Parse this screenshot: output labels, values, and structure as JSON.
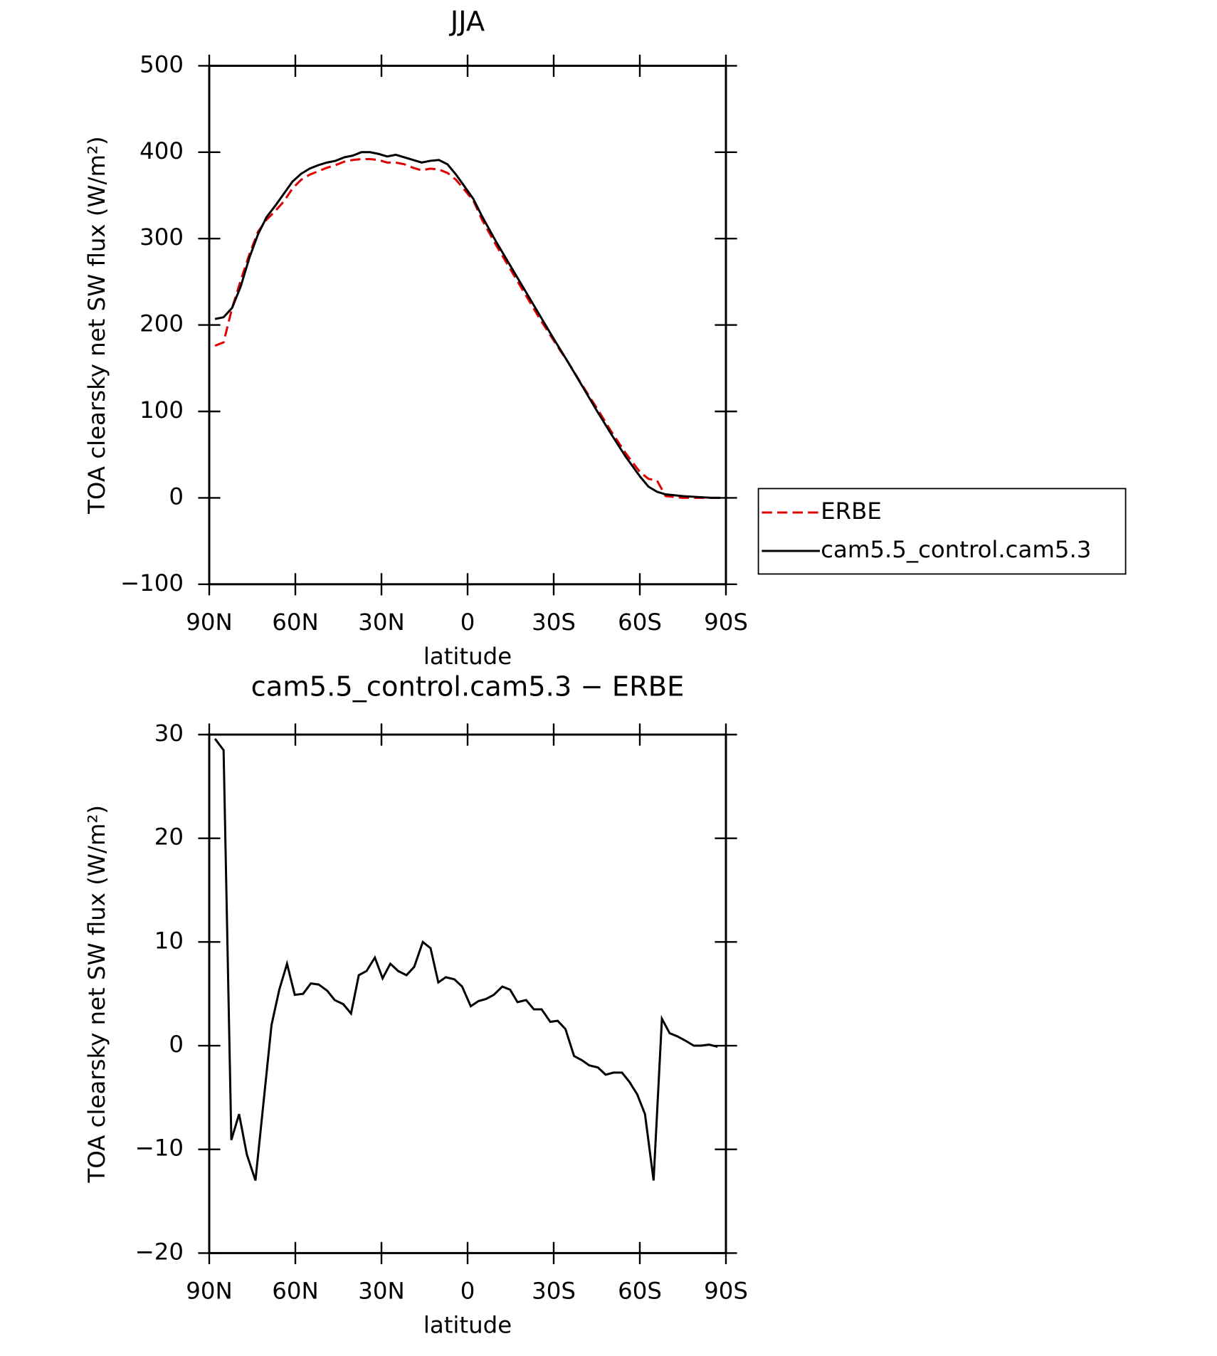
{
  "chart_data": [
    {
      "type": "line",
      "title": "JJA",
      "xlabel": "latitude",
      "ylabel": "TOA clearsky net SW flux (W/m²)",
      "xlim": [
        90,
        -90
      ],
      "xticks": [
        {
          "value": 90,
          "label": "90N"
        },
        {
          "value": 60,
          "label": "60N"
        },
        {
          "value": 30,
          "label": "30N"
        },
        0,
        {
          "value": -30,
          "label": "30S"
        },
        {
          "value": -60,
          "label": "60S"
        },
        {
          "value": -90,
          "label": "90S"
        }
      ],
      "ylim": [
        -100,
        500
      ],
      "yticks": [
        {
          "value": -100,
          "label": "−100"
        },
        0,
        100,
        200,
        300,
        400,
        500
      ],
      "legend": "right",
      "x": [
        88,
        85,
        82,
        79,
        76,
        73,
        70,
        67,
        64,
        61,
        58,
        55,
        52,
        49,
        46,
        43,
        40,
        37,
        34,
        31,
        28,
        25,
        22,
        19,
        16,
        13,
        10,
        7,
        4,
        1,
        -2,
        -5,
        -10,
        -15,
        -20,
        -25,
        -30,
        -35,
        -40,
        -45,
        -50,
        -55,
        -60,
        -63,
        -66,
        -69,
        -72,
        -75,
        -80,
        -85,
        -88
      ],
      "series": [
        {
          "name": "ERBE",
          "color": "#e00000",
          "style": "dashed",
          "values": [
            176,
            180,
            220,
            252,
            282,
            308,
            322,
            332,
            343,
            358,
            368,
            374,
            378,
            382,
            385,
            389,
            391,
            392,
            392,
            391,
            388,
            388,
            386,
            382,
            379,
            381,
            380,
            376,
            368,
            356,
            344,
            322,
            292,
            264,
            236,
            208,
            182,
            157,
            130,
            104,
            77,
            52,
            30,
            22,
            20,
            2,
            1,
            0,
            0,
            0,
            0
          ]
        },
        {
          "name": "cam5.5_control.cam5.3",
          "color": "#000000",
          "style": "solid",
          "values": [
            207,
            209,
            220,
            245,
            278,
            305,
            325,
            338,
            352,
            366,
            375,
            381,
            385,
            388,
            390,
            394,
            396,
            400,
            400,
            398,
            395,
            397,
            394,
            391,
            388,
            390,
            391,
            386,
            374,
            360,
            346,
            326,
            296,
            268,
            240,
            212,
            184,
            157,
            129,
            101,
            74,
            48,
            25,
            13,
            7,
            4,
            3,
            2,
            1,
            0,
            0
          ]
        }
      ]
    },
    {
      "type": "line",
      "title": "cam5.5_control.cam5.3 − ERBE",
      "xlabel": "latitude",
      "ylabel": "TOA clearsky net SW flux (W/m²)",
      "xlim": [
        90,
        -90
      ],
      "xticks": [
        {
          "value": 90,
          "label": "90N"
        },
        {
          "value": 60,
          "label": "60N"
        },
        {
          "value": 30,
          "label": "30N"
        },
        0,
        {
          "value": -30,
          "label": "30S"
        },
        {
          "value": -60,
          "label": "60S"
        },
        {
          "value": -90,
          "label": "90S"
        }
      ],
      "ylim": [
        -20,
        30
      ],
      "yticks": [
        {
          "value": -20,
          "label": "−20"
        },
        {
          "value": -10,
          "label": "−10"
        },
        0,
        10,
        20,
        30
      ],
      "x": [
        88,
        85,
        82.3,
        79.6,
        76.9,
        73.9,
        68.3,
        65.6,
        62.9,
        60.2,
        57.3,
        54.6,
        51.9,
        48.9,
        46.3,
        43.3,
        40.6,
        37.9,
        35.2,
        32.3,
        29.6,
        26.9,
        24.2,
        21.3,
        18.6,
        15.6,
        12.9,
        10.2,
        7.6,
        4.6,
        1.9,
        -1.1,
        -3.8,
        -6.4,
        -9.1,
        -12.1,
        -14.8,
        -17.4,
        -20.4,
        -23.1,
        -25.8,
        -28.8,
        -31.4,
        -34.1,
        -37.1,
        -39.8,
        -42.4,
        -45.4,
        -48.1,
        -50.8,
        -53.8,
        -56.4,
        -59.1,
        -61.8,
        -64.8,
        -67.7,
        -70.4,
        -73.1,
        -75.8,
        -78.8,
        -81.4,
        -84.1,
        -87.1
      ],
      "series": [
        {
          "color": "#000000",
          "style": "solid",
          "values": [
            29.6,
            28.5,
            -9.1,
            -6.6,
            -10.5,
            -13.0,
            2.0,
            5.4,
            7.9,
            4.9,
            5.0,
            6.0,
            5.9,
            5.3,
            4.4,
            4.0,
            3.1,
            6.8,
            7.2,
            8.5,
            6.5,
            7.9,
            7.2,
            6.8,
            7.6,
            10.0,
            9.4,
            6.1,
            6.6,
            6.4,
            5.7,
            3.8,
            4.3,
            4.5,
            4.9,
            5.7,
            5.4,
            4.2,
            4.4,
            3.5,
            3.5,
            2.3,
            2.4,
            1.6,
            -1.0,
            -1.4,
            -1.9,
            -2.1,
            -2.8,
            -2.6,
            -2.6,
            -3.5,
            -4.7,
            -6.6,
            -13.0,
            2.6,
            1.2,
            0.9,
            0.5,
            0.0,
            0.0,
            0.1,
            -0.1
          ]
        }
      ]
    }
  ]
}
